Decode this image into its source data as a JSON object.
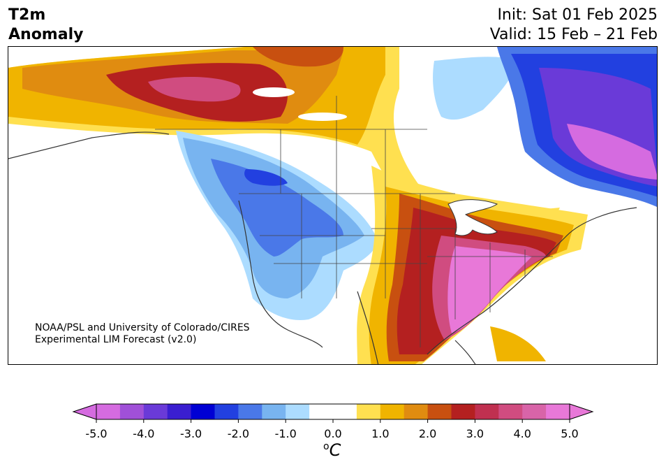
{
  "header": {
    "title_line1": "T2m",
    "title_line2": "Anomaly",
    "init": "Init: Sat 01 Feb 2025",
    "valid": "Valid: 15 Feb – 21 Feb"
  },
  "map": {
    "credit_line1": "NOAA/PSL and University of Colorado/CIRES",
    "credit_line2": "Experimental LIM Forecast (v2.0)"
  },
  "colorbar": {
    "unit_base": "C",
    "unit_sup": "o",
    "tick_labels": [
      "-5.0",
      "-4.0",
      "-3.0",
      "-2.0",
      "-1.0",
      "0.0",
      "1.0",
      "2.0",
      "3.0",
      "4.0",
      "5.0"
    ],
    "colors": [
      "#d56be0",
      "#a050d8",
      "#6a3ad8",
      "#3a1ed0",
      "#0000d4",
      "#2240e0",
      "#4a78e8",
      "#78b4f0",
      "#acdcff",
      "#ffffff",
      "#ffffff",
      "#ffe050",
      "#f0b400",
      "#e08c10",
      "#c85010",
      "#b42020",
      "#c03050",
      "#d04c80",
      "#d864a8",
      "#e878d8"
    ],
    "neg_end_color": "#d56be0",
    "pos_end_color": "#e878d8"
  }
}
